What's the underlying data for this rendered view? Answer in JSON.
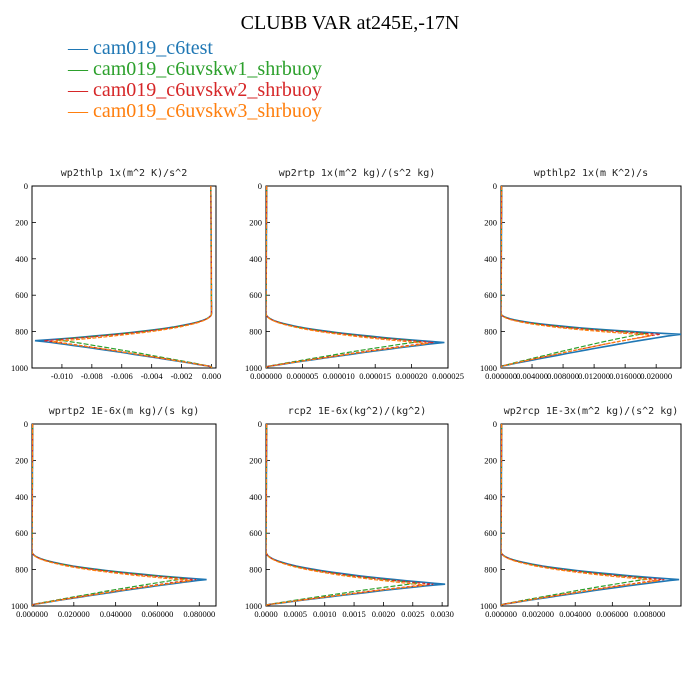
{
  "figure": {
    "title": "CLUBB VAR at245E,-17N",
    "legend": [
      {
        "label": "— cam019_c6test",
        "color": "#1f77b4"
      },
      {
        "label": "— cam019_c6uvskw1_shrbuoy",
        "color": "#2ca02c"
      },
      {
        "label": "— cam019_c6uvskw2_shrbuoy",
        "color": "#d62728"
      },
      {
        "label": "— cam019_c6uvskw3_shrbuoy",
        "color": "#ff7f0e"
      }
    ]
  },
  "chart_data": [
    {
      "type": "line",
      "title": "wp2thlp  1x(m^2 K)/s^2",
      "xlim": [
        -0.012,
        0.0003
      ],
      "ylim": [
        1000,
        0
      ],
      "yticks": [
        "0",
        "200",
        "400",
        "600",
        "800",
        "1000"
      ],
      "xticks": [
        "-0.010",
        "-0.008",
        "-0.006",
        "-0.004",
        "-0.002",
        "0.000"
      ],
      "peak_level": 850,
      "series": [
        {
          "name": "cam019_c6test",
          "peak": -0.0118
        },
        {
          "name": "cam019_c6uvskw1_shrbuoy",
          "peak": -0.0105
        },
        {
          "name": "cam019_c6uvskw2_shrbuoy",
          "peak": -0.0112
        },
        {
          "name": "cam019_c6uvskw3_shrbuoy",
          "peak": -0.0108
        }
      ]
    },
    {
      "type": "line",
      "title": "wp2rtp  1x(m^2 kg)/(s^2 kg)",
      "xlim": [
        0,
        2.5e-05
      ],
      "ylim": [
        1000,
        0
      ],
      "yticks": [
        "0",
        "200",
        "400",
        "600",
        "800",
        "1000"
      ],
      "xticks": [
        "0.000000",
        "0.000005",
        "0.000010",
        "0.000015",
        "0.000020",
        "0.000025"
      ],
      "peak_level": 860,
      "series": [
        {
          "name": "cam019_c6test",
          "peak": 2.45e-05
        },
        {
          "name": "cam019_c6uvskw1_shrbuoy",
          "peak": 2.15e-05
        },
        {
          "name": "cam019_c6uvskw2_shrbuoy",
          "peak": 2.3e-05
        },
        {
          "name": "cam019_c6uvskw3_shrbuoy",
          "peak": 2.25e-05
        }
      ]
    },
    {
      "type": "line",
      "title": "wpthlp2  1x(m K^2)/s",
      "xlim": [
        0,
        0.0232
      ],
      "ylim": [
        1000,
        0
      ],
      "yticks": [
        "0",
        "200",
        "400",
        "600",
        "800",
        "1000"
      ],
      "xticks": [
        "0.000000",
        "0.004000",
        "0.008000",
        "0.012000",
        "0.016000",
        "0.020000"
      ],
      "peak_level": 815,
      "series": [
        {
          "name": "cam019_c6test",
          "peak": 0.0232
        },
        {
          "name": "cam019_c6uvskw1_shrbuoy",
          "peak": 0.0188
        },
        {
          "name": "cam019_c6uvskw2_shrbuoy",
          "peak": 0.0205
        },
        {
          "name": "cam019_c6uvskw3_shrbuoy",
          "peak": 0.0198
        }
      ]
    },
    {
      "type": "line",
      "title": "wprtp2  1E-6x(m kg)/(s kg)",
      "xlim": [
        0,
        0.088
      ],
      "ylim": [
        1000,
        0
      ],
      "yticks": [
        "0",
        "200",
        "400",
        "600",
        "800",
        "1000"
      ],
      "xticks": [
        "0.000000",
        "0.020000",
        "0.040000",
        "0.060000",
        "0.080000"
      ],
      "peak_level": 855,
      "series": [
        {
          "name": "cam019_c6test",
          "peak": 0.0835
        },
        {
          "name": "cam019_c6uvskw1_shrbuoy",
          "peak": 0.0745
        },
        {
          "name": "cam019_c6uvskw2_shrbuoy",
          "peak": 0.0785
        },
        {
          "name": "cam019_c6uvskw3_shrbuoy",
          "peak": 0.077
        }
      ]
    },
    {
      "type": "line",
      "title": "rcp2  1E-6x(kg^2)/(kg^2)",
      "xlim": [
        0,
        0.0031
      ],
      "ylim": [
        1000,
        0
      ],
      "yticks": [
        "0",
        "200",
        "400",
        "600",
        "800",
        "1000"
      ],
      "xticks": [
        "0.0000",
        "0.0005",
        "0.0010",
        "0.0015",
        "0.0020",
        "0.0025",
        "0.0030"
      ],
      "peak_level": 880,
      "series": [
        {
          "name": "cam019_c6test",
          "peak": 0.00305
        },
        {
          "name": "cam019_c6uvskw1_shrbuoy",
          "peak": 0.00262
        },
        {
          "name": "cam019_c6uvskw2_shrbuoy",
          "peak": 0.00285
        },
        {
          "name": "cam019_c6uvskw3_shrbuoy",
          "peak": 0.00275
        }
      ]
    },
    {
      "type": "line",
      "title": "wp2rcp  1E-3x(m^2 kg)/(s^2 kg)",
      "xlim": [
        0,
        0.0097
      ],
      "ylim": [
        1000,
        0
      ],
      "yticks": [
        "0",
        "200",
        "400",
        "600",
        "800",
        "1000"
      ],
      "xticks": [
        "0.000000",
        "0.002000",
        "0.004000",
        "0.006000",
        "0.008000"
      ],
      "peak_level": 855,
      "series": [
        {
          "name": "cam019_c6test",
          "peak": 0.0096
        },
        {
          "name": "cam019_c6uvskw1_shrbuoy",
          "peak": 0.0082
        },
        {
          "name": "cam019_c6uvskw2_shrbuoy",
          "peak": 0.0088
        },
        {
          "name": "cam019_c6uvskw3_shrbuoy",
          "peak": 0.0086
        }
      ]
    }
  ]
}
